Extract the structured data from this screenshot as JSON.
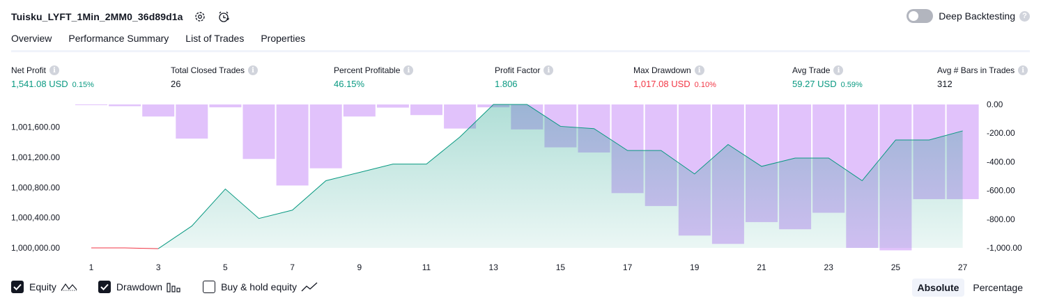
{
  "header": {
    "title": "Tuisku_LYFT_1Min_2MM0_36d89d1a",
    "deep_backtesting_label": "Deep Backtesting",
    "deep_backtesting_enabled": false
  },
  "tabs": [
    {
      "label": "Overview",
      "active": true
    },
    {
      "label": "Performance Summary",
      "active": false
    },
    {
      "label": "List of Trades",
      "active": false
    },
    {
      "label": "Properties",
      "active": false
    }
  ],
  "metrics": [
    {
      "label": "Net Profit",
      "value": "1,541.08 USD",
      "pct": "0.15%",
      "tone": "pos"
    },
    {
      "label": "Total Closed Trades",
      "value": "26",
      "pct": "",
      "tone": "neutral"
    },
    {
      "label": "Percent Profitable",
      "value": "46.15%",
      "pct": "",
      "tone": "pos"
    },
    {
      "label": "Profit Factor",
      "value": "1.806",
      "pct": "",
      "tone": "pos"
    },
    {
      "label": "Max Drawdown",
      "value": "1,017.08 USD",
      "pct": "0.10%",
      "tone": "neg"
    },
    {
      "label": "Avg Trade",
      "value": "59.27 USD",
      "pct": "0.59%",
      "tone": "pos"
    },
    {
      "label": "Avg # Bars in Trades",
      "value": "312",
      "pct": "",
      "tone": "neutral"
    }
  ],
  "chart_data": {
    "type": "area",
    "x": [
      1,
      2,
      3,
      4,
      5,
      6,
      7,
      8,
      9,
      10,
      11,
      12,
      13,
      14,
      15,
      16,
      17,
      18,
      19,
      20,
      21,
      22,
      23,
      24,
      25,
      26,
      27
    ],
    "x_tick_labels": [
      "1",
      "3",
      "5",
      "7",
      "9",
      "11",
      "13",
      "15",
      "17",
      "19",
      "21",
      "23",
      "25",
      "27"
    ],
    "left_axis": {
      "ticks": [
        "1,000,000.00",
        "1,000,400.00",
        "1,000,800.00",
        "1,001,200.00",
        "1,001,600.00"
      ],
      "ylim": [
        1000000,
        1001900
      ]
    },
    "right_axis": {
      "ticks": [
        "0.00",
        "-200.00",
        "-400.00",
        "-600.00",
        "-800.00",
        "-1,000.00"
      ],
      "ylim": [
        -1000,
        0
      ]
    },
    "series": [
      {
        "type": "area",
        "axis": "left",
        "values": [
          1000000,
          1000000,
          999990,
          1000290,
          1000780,
          1000390,
          1000500,
          1000890,
          1001000,
          1001110,
          1001110,
          1001470,
          1001900,
          1001900,
          1001610,
          1001580,
          1001290,
          1001290,
          1000980,
          1001370,
          1001080,
          1001190,
          1001190,
          1000890,
          1001430,
          1001430,
          1001550
        ],
        "color": "#089981",
        "fill": "#c9ebe2"
      },
      {
        "type": "bar",
        "axis": "right",
        "values": [
          -2,
          -12,
          -84,
          -238,
          -20,
          -380,
          -565,
          -445,
          -84,
          -22,
          -74,
          -168,
          -20,
          -174,
          -299,
          -335,
          -618,
          -708,
          -914,
          -972,
          -820,
          -870,
          -755,
          -1000,
          -1017,
          -660,
          -660
        ],
        "color": "#e1c2fb"
      }
    ],
    "grid": false
  },
  "legend": [
    {
      "label": "Equity",
      "checked": true,
      "icon": "equity-line-icon"
    },
    {
      "label": "Drawdown",
      "checked": true,
      "icon": "drawdown-bars-icon"
    },
    {
      "label": "Buy & hold equity",
      "checked": false,
      "icon": "buy-hold-line-icon"
    }
  ],
  "mode": {
    "absolute_label": "Absolute",
    "percentage_label": "Percentage",
    "selected": "Absolute"
  }
}
